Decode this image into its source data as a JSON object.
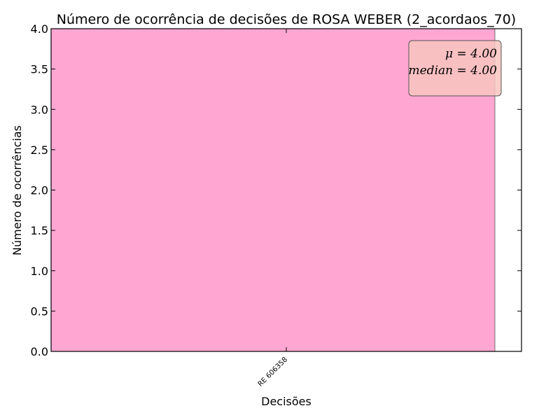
{
  "chart_data": {
    "type": "bar",
    "title": "Número de ocorrência de decisões de ROSA WEBER (2_acordaos_70)",
    "xlabel": "Decisões",
    "ylabel": "Número de ocorrências",
    "categories": [
      "RE 606358"
    ],
    "values": [
      4
    ],
    "ylim": [
      0,
      4
    ],
    "yticks": [
      "0.0",
      "0.5",
      "1.0",
      "1.5",
      "2.0",
      "2.5",
      "3.0",
      "3.5",
      "4.0"
    ],
    "bar_color": "#ffa6d2",
    "grid": false,
    "stats_box": {
      "placement": "top-right",
      "lines": [
        "μ = 4.00",
        "median = 4.00"
      ],
      "color": "#f8c4c0"
    }
  }
}
